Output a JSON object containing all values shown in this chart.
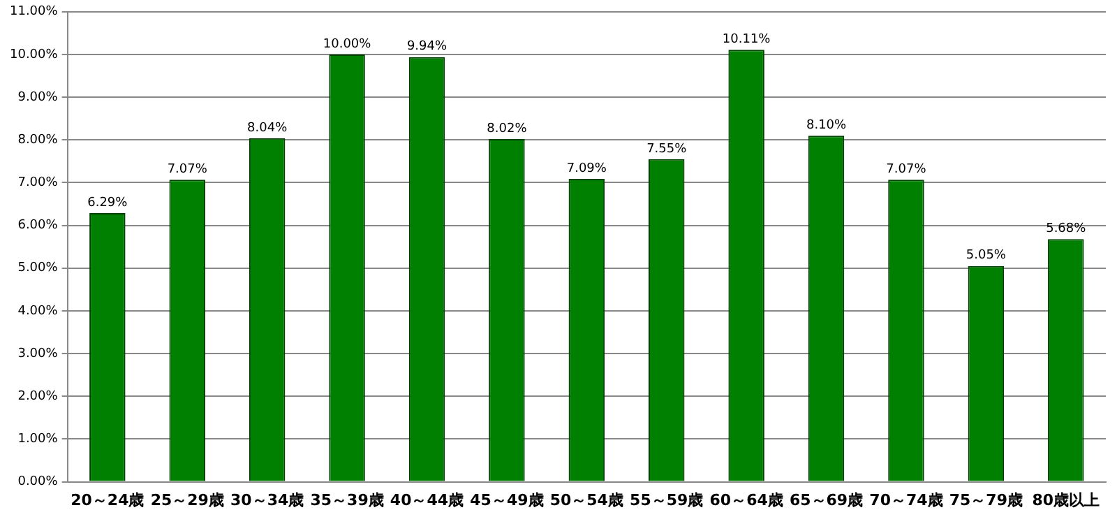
{
  "chart_data": {
    "type": "bar",
    "categories": [
      "20～24歳",
      "25～29歳",
      "30～34歳",
      "35～39歳",
      "40～44歳",
      "45～49歳",
      "50～54歳",
      "55～59歳",
      "60～64歳",
      "65～69歳",
      "70～74歳",
      "75～79歳",
      "80歳以上"
    ],
    "values": [
      6.29,
      7.07,
      8.04,
      10.0,
      9.94,
      8.02,
      7.09,
      7.55,
      10.11,
      8.1,
      7.07,
      5.05,
      5.68
    ],
    "value_labels": [
      "6.29%",
      "7.07%",
      "8.04%",
      "10.00%",
      "9.94%",
      "8.02%",
      "7.09%",
      "7.55%",
      "10.11%",
      "8.10%",
      "7.07%",
      "5.05%",
      "5.68%"
    ],
    "color": "#008000",
    "ylim": [
      0,
      11
    ],
    "yticks": [
      {
        "value": 0,
        "label": "0.00%"
      },
      {
        "value": 1,
        "label": "1.00%"
      },
      {
        "value": 2,
        "label": "2.00%"
      },
      {
        "value": 3,
        "label": "3.00%"
      },
      {
        "value": 4,
        "label": "4.00%"
      },
      {
        "value": 5,
        "label": "5.00%"
      },
      {
        "value": 6,
        "label": "6.00%"
      },
      {
        "value": 7,
        "label": "7.00%"
      },
      {
        "value": 8,
        "label": "8.00%"
      },
      {
        "value": 9,
        "label": "9.00%"
      },
      {
        "value": 10,
        "label": "10.00%"
      },
      {
        "value": 11,
        "label": "11.00%"
      }
    ],
    "grid": "y",
    "legend": false
  }
}
